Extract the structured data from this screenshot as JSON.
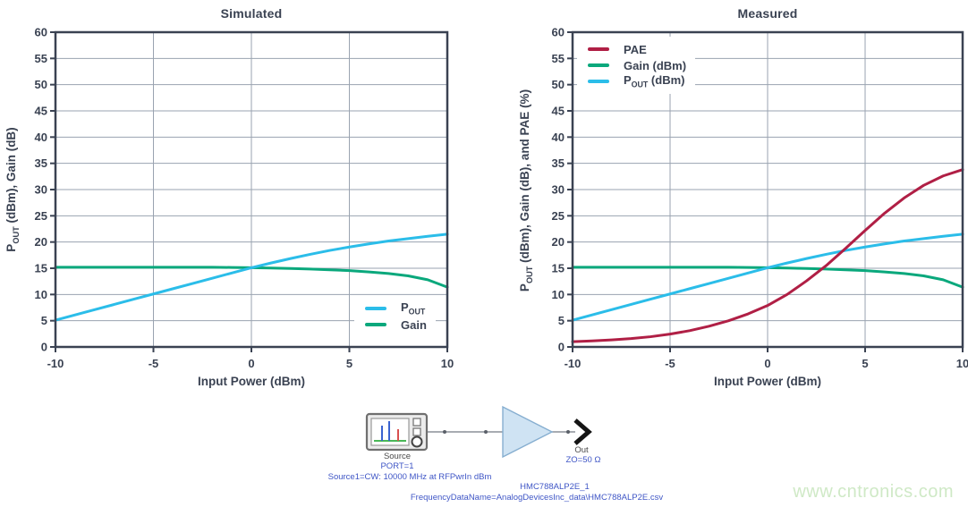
{
  "page": {
    "background": "#ffffff"
  },
  "watermark": {
    "text": "www.cntronics.com",
    "color": "#cfe9c6"
  },
  "chart_data": [
    {
      "type": "line",
      "title": "Simulated",
      "xlabel": "Input Power (dBm)",
      "ylabel": "P_OUT (dBm), Gain (dB)",
      "xlim": [
        -10,
        10
      ],
      "ylim": [
        0,
        60
      ],
      "xticks": [
        -10,
        -5,
        0,
        5,
        10
      ],
      "xtick_labels": [
        "-10",
        "-5",
        "0",
        "5",
        "10"
      ],
      "yticks": [
        0,
        5,
        10,
        15,
        20,
        25,
        30,
        35,
        40,
        45,
        50,
        55,
        60
      ],
      "ytick_labels": [
        "0",
        "5",
        "10",
        "15",
        "20",
        "25",
        "30",
        "35",
        "40",
        "45",
        "50",
        "55",
        "60"
      ],
      "grid": true,
      "axis_color": "#3a4252",
      "grid_color": "#9aa3b0",
      "x": [
        -10,
        -9,
        -8,
        -7,
        -6,
        -5,
        -4,
        -3,
        -2,
        -1,
        0,
        1,
        2,
        3,
        4,
        5,
        6,
        7,
        8,
        9,
        10
      ],
      "series": [
        {
          "name": "Gain",
          "color": "#0aa87c",
          "values": [
            15.2,
            15.2,
            15.2,
            15.2,
            15.2,
            15.2,
            15.2,
            15.2,
            15.2,
            15.15,
            15.1,
            15.05,
            14.95,
            14.85,
            14.7,
            14.55,
            14.3,
            14.0,
            13.55,
            12.8,
            11.4
          ]
        },
        {
          "name": "P_OUT",
          "color": "#2bbde9",
          "values": [
            5.1,
            6.1,
            7.1,
            8.1,
            9.1,
            10.1,
            11.1,
            12.1,
            13.1,
            14.1,
            15.1,
            16.0,
            16.85,
            17.65,
            18.4,
            19.05,
            19.65,
            20.2,
            20.65,
            21.1,
            21.5
          ]
        }
      ],
      "legend": {
        "position": "bottom-right",
        "entries": [
          {
            "label": "P_OUT",
            "color": "#2bbde9"
          },
          {
            "label": "Gain",
            "color": "#0aa87c"
          }
        ]
      }
    },
    {
      "type": "line",
      "title": "Measured",
      "xlabel": "Input Power (dBm)",
      "ylabel": "P_OUT (dBm), Gain (dB), and PAE (%)",
      "xlim": [
        -10,
        10
      ],
      "ylim": [
        0,
        60
      ],
      "xticks": [
        -10,
        -5,
        0,
        5,
        10
      ],
      "xtick_labels": [
        "-10",
        "-5",
        "0",
        "5",
        "10"
      ],
      "yticks": [
        0,
        5,
        10,
        15,
        20,
        25,
        30,
        35,
        40,
        45,
        50,
        55,
        60
      ],
      "ytick_labels": [
        "0",
        "5",
        "10",
        "15",
        "20",
        "25",
        "30",
        "35",
        "40",
        "45",
        "50",
        "55",
        "60"
      ],
      "grid": true,
      "axis_color": "#3a4252",
      "grid_color": "#9aa3b0",
      "x": [
        -10,
        -9,
        -8,
        -7,
        -6,
        -5,
        -4,
        -3,
        -2,
        -1,
        0,
        1,
        2,
        3,
        4,
        5,
        6,
        7,
        8,
        9,
        10
      ],
      "series": [
        {
          "name": "Gain",
          "color": "#0aa87c",
          "values": [
            15.2,
            15.2,
            15.2,
            15.2,
            15.2,
            15.2,
            15.2,
            15.2,
            15.2,
            15.15,
            15.1,
            15.05,
            14.95,
            14.85,
            14.7,
            14.55,
            14.3,
            14.0,
            13.55,
            12.8,
            11.4
          ]
        },
        {
          "name": "P_OUT",
          "color": "#2bbde9",
          "values": [
            5.1,
            6.1,
            7.1,
            8.1,
            9.1,
            10.1,
            11.1,
            12.1,
            13.1,
            14.1,
            15.1,
            16.0,
            16.85,
            17.65,
            18.4,
            19.05,
            19.65,
            20.2,
            20.65,
            21.1,
            21.5
          ]
        },
        {
          "name": "PAE",
          "color": "#b01f45",
          "values": [
            1.0,
            1.15,
            1.35,
            1.6,
            1.95,
            2.45,
            3.1,
            3.95,
            5.0,
            6.3,
            7.9,
            10.0,
            12.6,
            15.5,
            18.8,
            22.2,
            25.5,
            28.4,
            30.8,
            32.6,
            33.8
          ]
        }
      ],
      "legend": {
        "position": "top-left",
        "entries": [
          {
            "label": "PAE",
            "color": "#b01f45"
          },
          {
            "label": "Gain (dBm)",
            "color": "#0aa87c"
          },
          {
            "label": "P_OUT (dBm)",
            "color": "#2bbde9"
          }
        ]
      }
    }
  ],
  "schematic": {
    "source_label": "Source",
    "port_label": "PORT=1",
    "source_params": "Source1=CW: 10000 MHz at RFPwrIn dBm",
    "out_label": "Out",
    "out_impedance": "ZO=50 Ω",
    "component_name": "HMC788ALP2E_1",
    "component_data": "FrequencyDataName=AnalogDevicesInc_data\\HMC788ALP2E.csv",
    "param_text_color": "#3f56c6",
    "label_text_color": "#4a4a4a",
    "icons": {
      "source": "spectrum-source-instrument-icon",
      "amplifier": "amplifier-triangle-icon",
      "output": "output-port-arrow-icon"
    }
  }
}
